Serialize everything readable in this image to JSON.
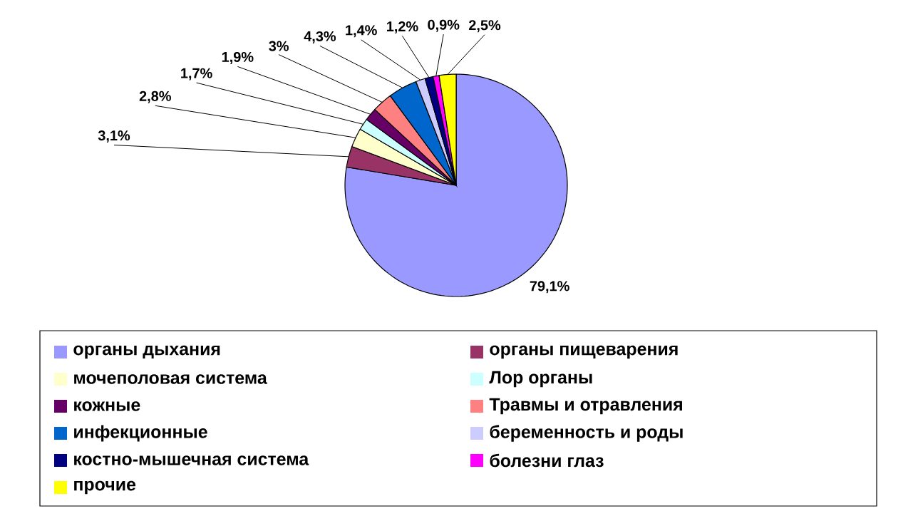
{
  "chart_data": {
    "type": "pie",
    "categories": [
      "органы дыхания",
      "органы пищеварения",
      "мочеполовая система",
      "Лор органы",
      "кожные",
      "Травмы и отравления",
      "инфекционные",
      "беременность и роды",
      "костно-мышечная система",
      "болезни глаз",
      "прочие"
    ],
    "values": [
      79.1,
      3.1,
      2.8,
      1.7,
      1.9,
      3,
      4.3,
      1.4,
      1.2,
      0.9,
      2.5
    ],
    "colors": [
      "#9999ff",
      "#993366",
      "#ffffcc",
      "#ccffff",
      "#660066",
      "#ff8080",
      "#0066cc",
      "#ccccff",
      "#000080",
      "#ff00ff",
      "#ffff00"
    ],
    "value_labels": [
      "79,1%",
      "3,1%",
      "2,8%",
      "1,7%",
      "1,9%",
      "3%",
      "4,3%",
      "1,4%",
      "1,2%",
      "0,9%",
      "2,5%"
    ],
    "legend": "bottom"
  }
}
